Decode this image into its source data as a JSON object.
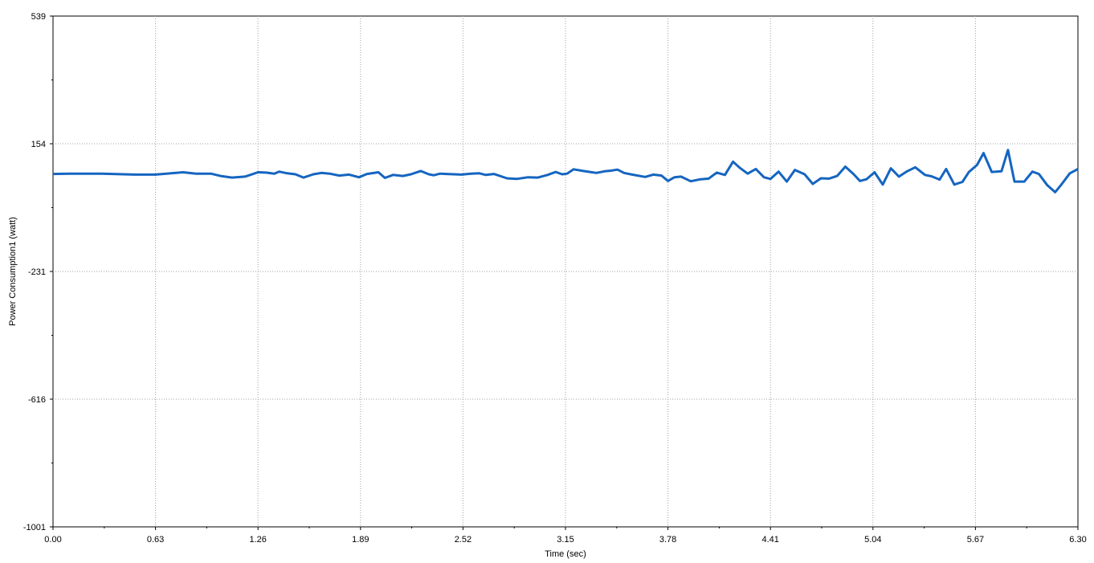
{
  "chart_data": {
    "type": "line",
    "title": "",
    "xlabel": "Time (sec)",
    "ylabel": "Power Consumption1 (watt)",
    "xlim": [
      0,
      6.3
    ],
    "ylim": [
      -1001,
      539
    ],
    "x_ticks": [
      "0.00",
      "0.63",
      "1.26",
      "1.89",
      "2.52",
      "3.15",
      "3.78",
      "4.41",
      "5.04",
      "5.67",
      "6.30"
    ],
    "y_ticks": [
      "539",
      "154",
      "-231",
      "-616",
      "-1001"
    ],
    "grid": true,
    "line_color": "#1565c0",
    "series": [
      {
        "x": [
          0.0,
          0.1,
          0.3,
          0.5,
          0.63,
          0.8,
          0.88,
          0.97,
          1.03,
          1.1,
          1.18,
          1.23,
          1.26,
          1.31,
          1.36,
          1.39,
          1.44,
          1.49,
          1.54,
          1.6,
          1.65,
          1.7,
          1.76,
          1.82,
          1.88,
          1.93,
          2.0,
          2.04,
          2.09,
          2.15,
          2.2,
          2.26,
          2.31,
          2.34,
          2.38,
          2.42,
          2.51,
          2.57,
          2.62,
          2.66,
          2.71,
          2.79,
          2.85,
          2.92,
          2.98,
          3.04,
          3.09,
          3.13,
          3.16,
          3.2,
          3.26,
          3.3,
          3.34,
          3.39,
          3.43,
          3.47,
          3.51,
          3.56,
          3.64,
          3.69,
          3.74,
          3.78,
          3.82,
          3.86,
          3.92,
          3.98,
          4.03,
          4.08,
          4.13,
          4.18,
          4.22,
          4.27,
          4.32,
          4.37,
          4.41,
          4.46,
          4.51,
          4.56,
          4.62,
          4.67,
          4.72,
          4.77,
          4.82,
          4.87,
          4.92,
          4.96,
          5.0,
          5.05,
          5.1,
          5.15,
          5.2,
          5.25,
          5.3,
          5.36,
          5.4,
          5.45,
          5.49,
          5.54,
          5.59,
          5.63,
          5.68,
          5.72,
          5.77,
          5.83,
          5.87,
          5.91,
          5.97,
          6.02,
          6.06,
          6.11,
          6.16,
          6.2,
          6.25,
          6.3
        ],
        "values": [
          63,
          64,
          64,
          61,
          61,
          68,
          64,
          64,
          57,
          52,
          55,
          63,
          68,
          67,
          64,
          70,
          65,
          62,
          52,
          62,
          66,
          64,
          58,
          61,
          53,
          63,
          68,
          51,
          60,
          57,
          62,
          72,
          62,
          59,
          64,
          63,
          61,
          64,
          65,
          60,
          63,
          50,
          48,
          53,
          52,
          60,
          69,
          62,
          64,
          77,
          72,
          69,
          66,
          71,
          73,
          76,
          66,
          61,
          54,
          61,
          58,
          42,
          53,
          55,
          41,
          47,
          49,
          67,
          60,
          100,
          82,
          64,
          78,
          53,
          48,
          70,
          40,
          75,
          62,
          33,
          50,
          49,
          57,
          85,
          63,
          42,
          47,
          68,
          31,
          80,
          55,
          71,
          83,
          60,
          56,
          46,
          78,
          31,
          39,
          69,
          90,
          126,
          69,
          71,
          135,
          40,
          40,
          70,
          63,
          30,
          8,
          32,
          65,
          78
        ]
      }
    ]
  }
}
